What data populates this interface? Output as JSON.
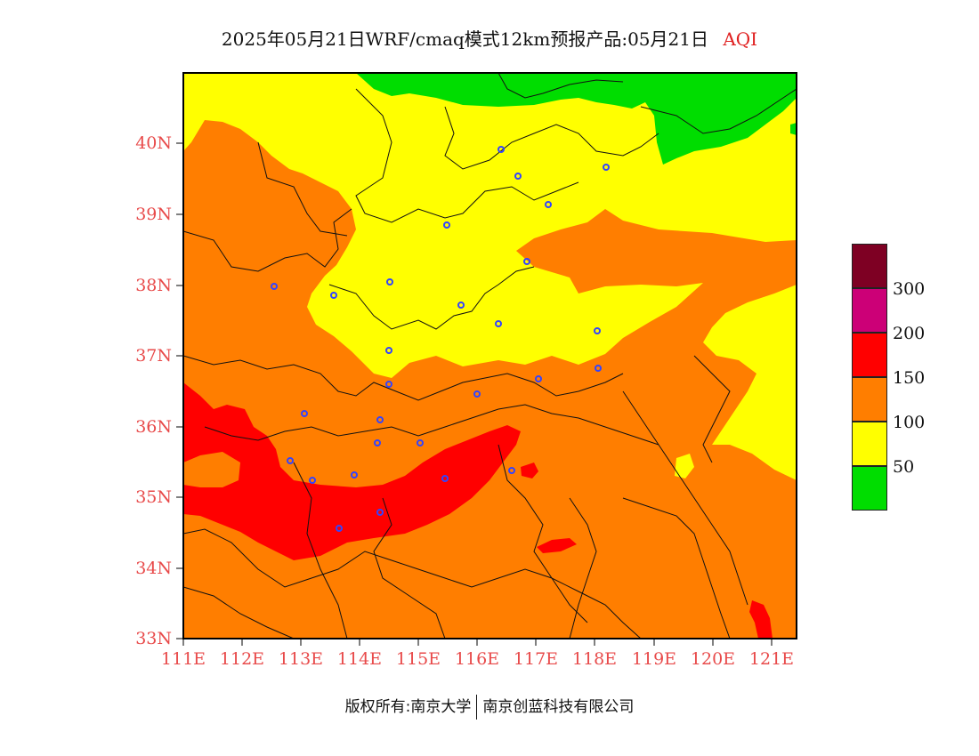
{
  "title": {
    "main": "2025年05月21日WRF/cmaq模式12km预报产品:05月21日",
    "variable": "AQI"
  },
  "map": {
    "lat_ticks": [
      "40N",
      "39N",
      "38N",
      "37N",
      "36N",
      "35N",
      "34N",
      "33N"
    ],
    "lon_ticks": [
      "111E",
      "112E",
      "113E",
      "114E",
      "115E",
      "116E",
      "117E",
      "118E",
      "119E",
      "120E",
      "121E"
    ],
    "lat_range": [
      33,
      41
    ],
    "lon_range": [
      111,
      121.4
    ],
    "colors": {
      "good": "#00dd00",
      "moderate": "#ffff00",
      "unhealthy_sensitive": "#ff7e00",
      "unhealthy": "#ff0000",
      "very_unhealthy": "#cc0077",
      "hazardous": "#7e0023"
    },
    "station_marker_color": "#3344ff"
  },
  "legend": {
    "labels": [
      "300",
      "200",
      "150",
      "100",
      "50"
    ],
    "colors": [
      "#7e0023",
      "#cc0077",
      "#ff0000",
      "#ff7e00",
      "#ffff00",
      "#00dd00"
    ]
  },
  "footer": {
    "left": "版权所有:南京大学",
    "right": "南京创蓝科技有限公司"
  }
}
